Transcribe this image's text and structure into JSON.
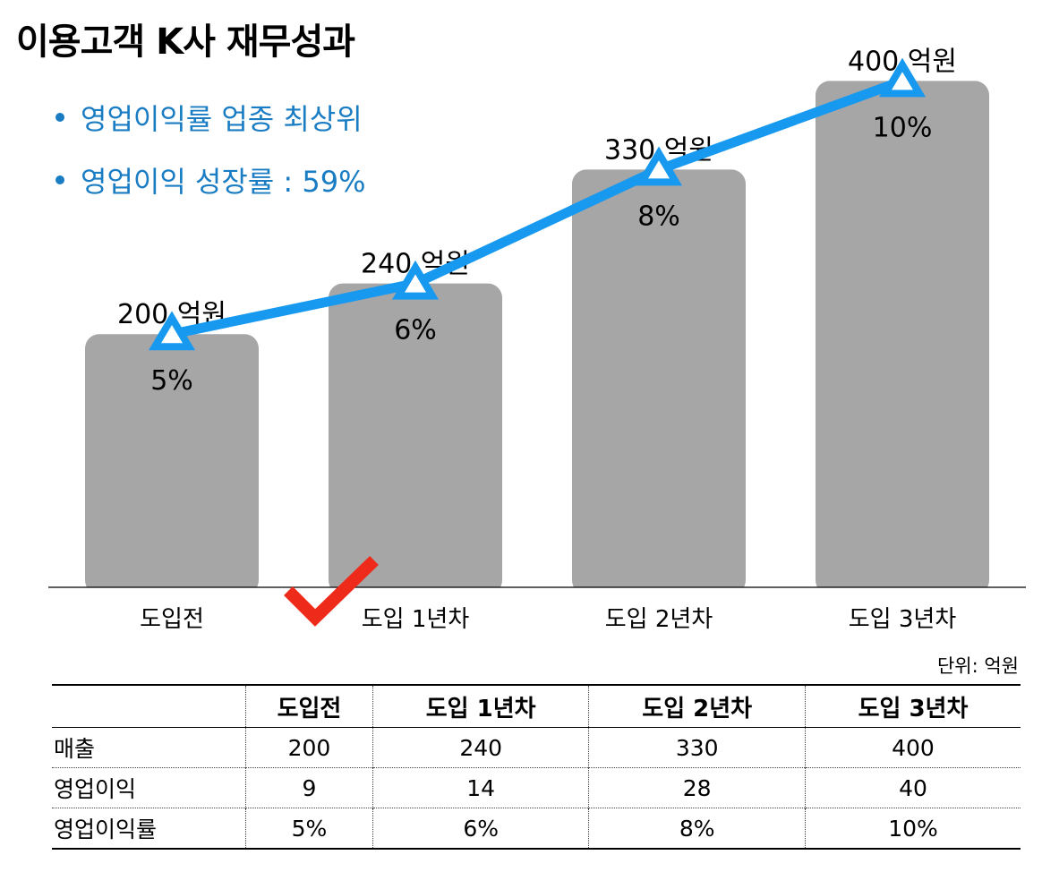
{
  "title": "이용고객 K사 재무성과",
  "bullets": [
    "영업이익률 업종 최상위",
    "영업이익 성장률 : 59%"
  ],
  "colors": {
    "bar": "#a6a6a6",
    "line": "#1799f0",
    "bullet_text": "#1a7dc4",
    "check": "#ee2a1b"
  },
  "chart_data": {
    "type": "bar",
    "categories": [
      "도입전",
      "도입 1년차",
      "도입 2년차",
      "도입 3년차"
    ],
    "series": [
      {
        "name": "매출",
        "values": [
          200,
          240,
          330,
          400
        ],
        "value_labels": [
          "200 억원",
          "240 억원",
          "330 억원",
          "400 억원"
        ]
      },
      {
        "name": "영업이익률",
        "values": [
          5,
          6,
          8,
          10
        ],
        "value_labels": [
          "5%",
          "6%",
          "8%",
          "10%"
        ]
      }
    ],
    "marker": "triangle",
    "annotation": "check-mark"
  },
  "table": {
    "unit": "단위: 억원",
    "headers": [
      "",
      "도입전",
      "도입 1년차",
      "도입 2년차",
      "도입 3년차"
    ],
    "rows": [
      {
        "label": "매출",
        "values": [
          "200",
          "240",
          "330",
          "400"
        ]
      },
      {
        "label": "영업이익",
        "values": [
          "9",
          "14",
          "28",
          "40"
        ]
      },
      {
        "label": "영업이익률",
        "values": [
          "5%",
          "6%",
          "8%",
          "10%"
        ]
      }
    ]
  }
}
